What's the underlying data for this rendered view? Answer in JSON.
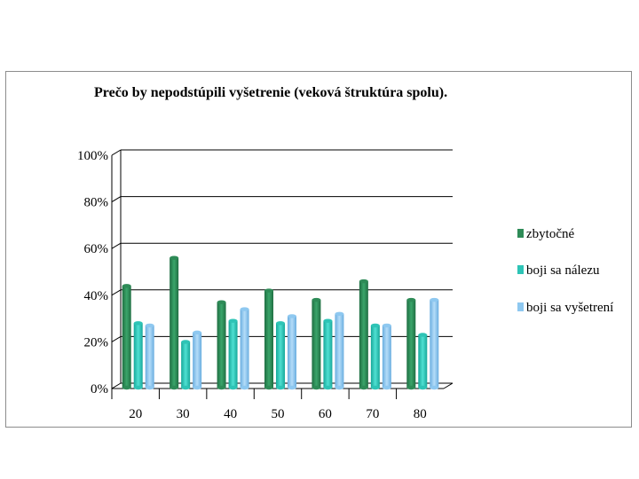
{
  "chart_data": {
    "type": "bar",
    "title": "Prečo by nepodstúpili vyšetrenie (veková štruktúra spolu).",
    "categories": [
      "20",
      "30",
      "40",
      "50",
      "60",
      "70",
      "80"
    ],
    "series": [
      {
        "name": "zbytočné",
        "color": "#2e8b57",
        "values": [
          44,
          56,
          37,
          42,
          38,
          46,
          38
        ]
      },
      {
        "name": "boji sa nálezu",
        "color": "#2ec4b6",
        "values": [
          28,
          20,
          29,
          28,
          29,
          27,
          23
        ]
      },
      {
        "name": "boji sa vyšetrení",
        "color": "#8ec8f0",
        "values": [
          27,
          24,
          34,
          31,
          32,
          27,
          38
        ]
      }
    ],
    "yticks": [
      "0%",
      "20%",
      "40%",
      "60%",
      "80%",
      "100%"
    ],
    "ylim": [
      0,
      100
    ],
    "grid": true,
    "legend": "right"
  }
}
